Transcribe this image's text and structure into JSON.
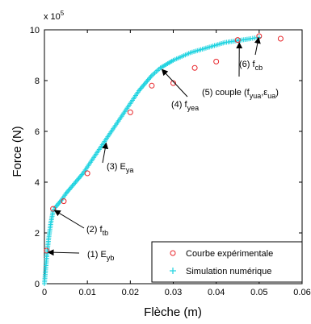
{
  "chart_data": {
    "type": "scatter",
    "title": "",
    "xlabel": "Flèche (m)",
    "ylabel": "Force (N)",
    "xlim": [
      0,
      0.06
    ],
    "ylim": [
      0,
      10
    ],
    "y_exponent_label": "x 10",
    "y_exponent_power": "5",
    "x_ticks": [
      0,
      0.01,
      0.02,
      0.03,
      0.04,
      0.05,
      0.06
    ],
    "x_tick_labels": [
      "0",
      "0.01",
      "0.02",
      "0.03",
      "0.04",
      "0.05",
      "0.06"
    ],
    "y_ticks": [
      0,
      2,
      4,
      6,
      8,
      10
    ],
    "y_tick_labels": [
      "0",
      "2",
      "4",
      "6",
      "8",
      "10"
    ],
    "grid": false,
    "legend_position": "bottom-right",
    "colors": {
      "experimental": "#e8262b",
      "simulation": "#1fd3e0",
      "axis": "#000000"
    },
    "series": [
      {
        "name": "Courbe expérimentale",
        "marker": "circle",
        "x": [
          0.0005,
          0.002,
          0.0045,
          0.01,
          0.02,
          0.025,
          0.03,
          0.035,
          0.04,
          0.045,
          0.05,
          0.055
        ],
        "y": [
          1.3,
          2.95,
          3.25,
          4.35,
          6.75,
          7.8,
          7.9,
          8.5,
          8.75,
          9.6,
          9.75,
          9.65
        ]
      },
      {
        "name": "Simulation numérique",
        "marker": "plus",
        "x": [
          0,
          0.0005,
          0.001,
          0.0015,
          0.002,
          0.0025,
          0.003,
          0.0035,
          0.004,
          0.005,
          0.006,
          0.007,
          0.008,
          0.009,
          0.01,
          0.011,
          0.012,
          0.013,
          0.014,
          0.015,
          0.016,
          0.017,
          0.018,
          0.019,
          0.02,
          0.021,
          0.022,
          0.023,
          0.024,
          0.025,
          0.026,
          0.027,
          0.028,
          0.029,
          0.03,
          0.032,
          0.034,
          0.036,
          0.038,
          0.04,
          0.042,
          0.044,
          0.046,
          0.048,
          0.049,
          0.05
        ],
        "y": [
          0,
          1.0,
          1.8,
          2.4,
          2.85,
          3.0,
          3.1,
          3.2,
          3.3,
          3.55,
          3.75,
          3.95,
          4.15,
          4.35,
          4.6,
          4.85,
          5.1,
          5.35,
          5.6,
          5.85,
          6.1,
          6.35,
          6.6,
          6.85,
          7.1,
          7.35,
          7.6,
          7.8,
          8.0,
          8.2,
          8.35,
          8.5,
          8.6,
          8.7,
          8.8,
          8.95,
          9.1,
          9.2,
          9.3,
          9.4,
          9.5,
          9.55,
          9.6,
          9.65,
          9.68,
          9.7
        ]
      }
    ],
    "annotations": [
      {
        "label": "(1) E",
        "sub": "yb",
        "x": 0.0005,
        "y": 1.3
      },
      {
        "label": "(2) f",
        "sub": "tb",
        "x": 0.002,
        "y": 2.95
      },
      {
        "label": "(3) E",
        "sub": "ya",
        "x": 0.014,
        "y": 5.6
      },
      {
        "label": "(4) f",
        "sub": "yea",
        "x": 0.027,
        "y": 8.5
      },
      {
        "label": "(5) couple (f",
        "sub": "yua",
        "mid": ",ε",
        "sub2": "ua",
        "end": ")",
        "x": 0.045,
        "y": 9.55
      },
      {
        "label": "(6) f",
        "sub": "cb",
        "x": 0.0495,
        "y": 9.75
      }
    ]
  }
}
